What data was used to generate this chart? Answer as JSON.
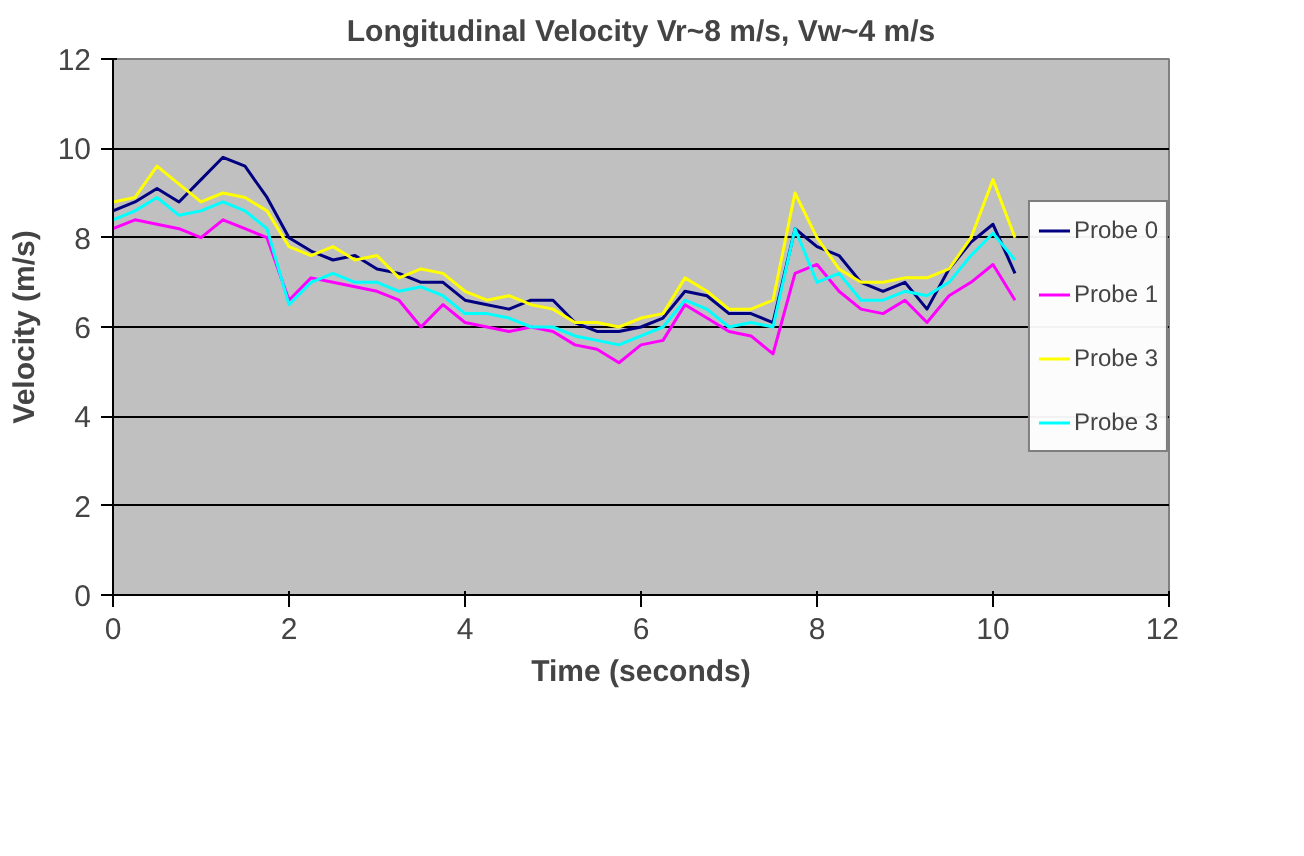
{
  "chart_data": {
    "type": "line",
    "title": "Longitudinal Velocity Vr~8 m/s, Vw~4 m/s",
    "xlabel": "Time (seconds)",
    "ylabel": "Velocity (m/s)",
    "x": [
      0,
      0.25,
      0.5,
      0.75,
      1.0,
      1.25,
      1.5,
      1.75,
      2.0,
      2.25,
      2.5,
      2.75,
      3.0,
      3.25,
      3.5,
      3.75,
      4.0,
      4.25,
      4.5,
      4.75,
      5.0,
      5.25,
      5.5,
      5.75,
      6.0,
      6.25,
      6.5,
      6.75,
      7.0,
      7.25,
      7.5,
      7.75,
      8.0,
      8.25,
      8.5,
      8.75,
      9.0,
      9.25,
      9.5,
      9.75,
      10.0,
      10.25
    ],
    "series": [
      {
        "name": "Probe 0",
        "color": "#000080",
        "values": [
          8.6,
          8.8,
          9.1,
          8.8,
          9.3,
          9.8,
          9.6,
          8.9,
          8.0,
          7.7,
          7.5,
          7.6,
          7.3,
          7.2,
          7.0,
          7.0,
          6.6,
          6.5,
          6.4,
          6.6,
          6.6,
          6.1,
          5.9,
          5.9,
          6.0,
          6.2,
          6.8,
          6.7,
          6.3,
          6.3,
          6.1,
          8.2,
          7.8,
          7.6,
          7.0,
          6.8,
          7.0,
          6.4,
          7.3,
          7.9,
          8.3,
          7.2
        ]
      },
      {
        "name": "Probe 1",
        "color": "#ff00ff",
        "values": [
          8.2,
          8.4,
          8.3,
          8.2,
          8.0,
          8.4,
          8.2,
          8.0,
          6.6,
          7.1,
          7.0,
          6.9,
          6.8,
          6.6,
          6.0,
          6.5,
          6.1,
          6.0,
          5.9,
          6.0,
          5.9,
          5.6,
          5.5,
          5.2,
          5.6,
          5.7,
          6.5,
          6.2,
          5.9,
          5.8,
          5.4,
          7.2,
          7.4,
          6.8,
          6.4,
          6.3,
          6.6,
          6.1,
          6.7,
          7.0,
          7.4,
          6.6
        ]
      },
      {
        "name": "Probe 3",
        "color": "#ffff00",
        "values": [
          8.8,
          8.9,
          9.6,
          9.2,
          8.8,
          9.0,
          8.9,
          8.6,
          7.8,
          7.6,
          7.8,
          7.5,
          7.6,
          7.1,
          7.3,
          7.2,
          6.8,
          6.6,
          6.7,
          6.5,
          6.4,
          6.1,
          6.1,
          6.0,
          6.2,
          6.3,
          7.1,
          6.8,
          6.4,
          6.4,
          6.6,
          9.0,
          8.0,
          7.3,
          7.0,
          7.0,
          7.1,
          7.1,
          7.3,
          8.0,
          9.3,
          8.0
        ]
      },
      {
        "name": "Probe 3",
        "color": "#00ffff",
        "values": [
          8.4,
          8.6,
          8.9,
          8.5,
          8.6,
          8.8,
          8.6,
          8.2,
          6.5,
          7.0,
          7.2,
          7.0,
          7.0,
          6.8,
          6.9,
          6.7,
          6.3,
          6.3,
          6.2,
          6.0,
          6.0,
          5.8,
          5.7,
          5.6,
          5.8,
          6.0,
          6.6,
          6.4,
          6.0,
          6.1,
          6.0,
          8.2,
          7.0,
          7.2,
          6.6,
          6.6,
          6.8,
          6.7,
          7.0,
          7.6,
          8.1,
          7.5
        ]
      }
    ],
    "xlim": [
      0,
      12
    ],
    "ylim": [
      0,
      12
    ],
    "xticks": [
      0,
      2,
      4,
      6,
      8,
      10,
      12
    ],
    "yticks": [
      0,
      2,
      4,
      6,
      8,
      10,
      12
    ],
    "grid": "y",
    "legend": "right",
    "marker": "none",
    "line_style": "solid"
  }
}
